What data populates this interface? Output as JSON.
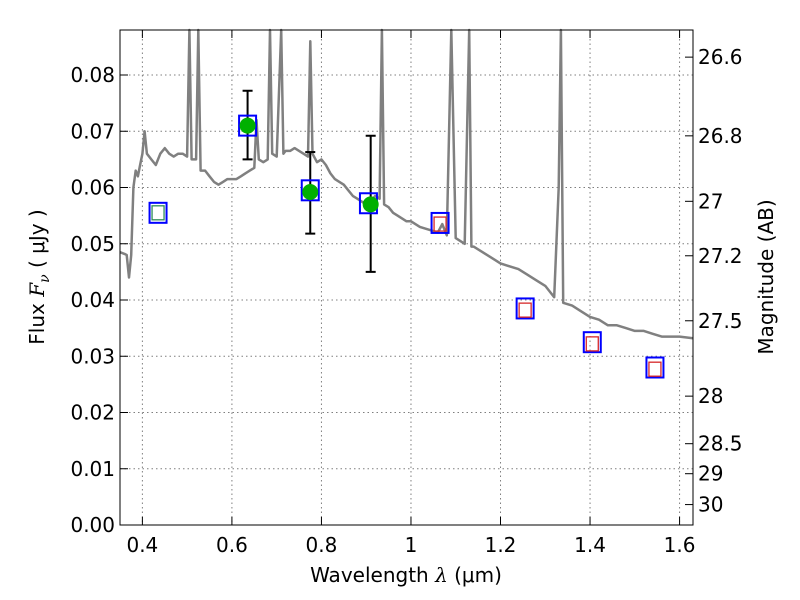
{
  "chart_data": {
    "type": "scatter",
    "xlabel": {
      "prefix": "Wavelength ",
      "symbol": "λ",
      "unit": " (μm)"
    },
    "ylabel": {
      "prefix": "Flux ",
      "symbol": "F",
      "subscript": "ν",
      "unit": " ( μJy )"
    },
    "y2label": "Magnitude (AB)",
    "xlim": [
      0.35,
      1.63
    ],
    "ylim": [
      0.0,
      0.088
    ],
    "grid": true,
    "x_ticks": [
      0.4,
      0.6,
      0.8,
      1.0,
      1.2,
      1.4,
      1.6
    ],
    "x_tick_labels": [
      "0.4",
      "0.6",
      "0.8",
      "1",
      "1.2",
      "1.4",
      "1.6"
    ],
    "y_ticks": [
      0.0,
      0.01,
      0.02,
      0.03,
      0.04,
      0.05,
      0.06,
      0.07,
      0.08
    ],
    "y_tick_labels": [
      "0.00",
      "0.01",
      "0.02",
      "0.03",
      "0.04",
      "0.05",
      "0.06",
      "0.07",
      "0.08"
    ],
    "y2_ticks": [
      {
        "mag": 26.6,
        "label": "26.6"
      },
      {
        "mag": 26.8,
        "label": "26.8"
      },
      {
        "mag": 27.0,
        "label": "27"
      },
      {
        "mag": 27.2,
        "label": "27.2"
      },
      {
        "mag": 27.5,
        "label": "27.5"
      },
      {
        "mag": 28.0,
        "label": "28"
      },
      {
        "mag": 28.5,
        "label": "28.5"
      },
      {
        "mag": 29.0,
        "label": "29"
      },
      {
        "mag": 30.0,
        "label": "30"
      }
    ],
    "sed_model": {
      "color": "#808080",
      "points": [
        [
          0.35,
          0.0485
        ],
        [
          0.36,
          0.0482
        ],
        [
          0.365,
          0.048
        ],
        [
          0.37,
          0.044
        ],
        [
          0.375,
          0.048
        ],
        [
          0.38,
          0.06
        ],
        [
          0.385,
          0.063
        ],
        [
          0.39,
          0.062
        ],
        [
          0.395,
          0.064
        ],
        [
          0.4,
          0.066
        ],
        [
          0.405,
          0.07
        ],
        [
          0.41,
          0.066
        ],
        [
          0.42,
          0.065
        ],
        [
          0.43,
          0.064
        ],
        [
          0.44,
          0.066
        ],
        [
          0.45,
          0.067
        ],
        [
          0.46,
          0.066
        ],
        [
          0.47,
          0.0655
        ],
        [
          0.48,
          0.066
        ],
        [
          0.49,
          0.066
        ],
        [
          0.5,
          0.0655
        ],
        [
          0.505,
          0.09
        ],
        [
          0.51,
          0.065
        ],
        [
          0.52,
          0.065
        ],
        [
          0.525,
          0.088
        ],
        [
          0.53,
          0.063
        ],
        [
          0.54,
          0.063
        ],
        [
          0.55,
          0.062
        ],
        [
          0.56,
          0.061
        ],
        [
          0.57,
          0.0605
        ],
        [
          0.58,
          0.061
        ],
        [
          0.59,
          0.0615
        ],
        [
          0.6,
          0.0615
        ],
        [
          0.61,
          0.0615
        ],
        [
          0.62,
          0.062
        ],
        [
          0.63,
          0.0625
        ],
        [
          0.64,
          0.063
        ],
        [
          0.65,
          0.0635
        ],
        [
          0.655,
          0.072
        ],
        [
          0.66,
          0.065
        ],
        [
          0.67,
          0.0645
        ],
        [
          0.68,
          0.065
        ],
        [
          0.685,
          0.09
        ],
        [
          0.69,
          0.066
        ],
        [
          0.7,
          0.0655
        ],
        [
          0.71,
          0.09
        ],
        [
          0.715,
          0.066
        ],
        [
          0.72,
          0.0665
        ],
        [
          0.73,
          0.0665
        ],
        [
          0.74,
          0.067
        ],
        [
          0.75,
          0.0665
        ],
        [
          0.76,
          0.066
        ],
        [
          0.77,
          0.0655
        ],
        [
          0.775,
          0.086
        ],
        [
          0.78,
          0.066
        ],
        [
          0.79,
          0.0645
        ],
        [
          0.8,
          0.065
        ],
        [
          0.81,
          0.064
        ],
        [
          0.82,
          0.0625
        ],
        [
          0.83,
          0.0615
        ],
        [
          0.84,
          0.061
        ],
        [
          0.85,
          0.0605
        ],
        [
          0.86,
          0.0595
        ],
        [
          0.87,
          0.0585
        ],
        [
          0.88,
          0.058
        ],
        [
          0.89,
          0.0575
        ],
        [
          0.9,
          0.057
        ],
        [
          0.91,
          0.0575
        ],
        [
          0.92,
          0.0585
        ],
        [
          0.93,
          0.058
        ],
        [
          0.935,
          0.09
        ],
        [
          0.94,
          0.057
        ],
        [
          0.95,
          0.0565
        ],
        [
          0.96,
          0.0555
        ],
        [
          0.97,
          0.055
        ],
        [
          0.98,
          0.0545
        ],
        [
          0.99,
          0.054
        ],
        [
          1.0,
          0.054
        ],
        [
          1.02,
          0.053
        ],
        [
          1.04,
          0.0525
        ],
        [
          1.06,
          0.052
        ],
        [
          1.07,
          0.0535
        ],
        [
          1.08,
          0.0515
        ],
        [
          1.09,
          0.09
        ],
        [
          1.1,
          0.051
        ],
        [
          1.12,
          0.05
        ],
        [
          1.13,
          0.09
        ],
        [
          1.135,
          0.0495
        ],
        [
          1.14,
          0.0495
        ],
        [
          1.16,
          0.0485
        ],
        [
          1.18,
          0.0475
        ],
        [
          1.2,
          0.0465
        ],
        [
          1.22,
          0.046
        ],
        [
          1.24,
          0.0455
        ],
        [
          1.26,
          0.0445
        ],
        [
          1.28,
          0.0435
        ],
        [
          1.3,
          0.0425
        ],
        [
          1.31,
          0.0415
        ],
        [
          1.32,
          0.0405
        ],
        [
          1.33,
          0.06
        ],
        [
          1.335,
          0.09
        ],
        [
          1.34,
          0.0395
        ],
        [
          1.36,
          0.039
        ],
        [
          1.38,
          0.038
        ],
        [
          1.4,
          0.037
        ],
        [
          1.42,
          0.0365
        ],
        [
          1.44,
          0.0355
        ],
        [
          1.46,
          0.0355
        ],
        [
          1.48,
          0.035
        ],
        [
          1.5,
          0.0345
        ],
        [
          1.52,
          0.0345
        ],
        [
          1.54,
          0.034
        ],
        [
          1.56,
          0.0335
        ],
        [
          1.58,
          0.0335
        ],
        [
          1.6,
          0.0335
        ],
        [
          1.63,
          0.0332
        ]
      ]
    },
    "model_photometry": [
      {
        "x": 0.435,
        "y": 0.0555
      },
      {
        "x": 0.635,
        "y": 0.071
      },
      {
        "x": 0.775,
        "y": 0.0595
      },
      {
        "x": 0.905,
        "y": 0.0572
      },
      {
        "x": 1.065,
        "y": 0.0537
      },
      {
        "x": 1.255,
        "y": 0.0385
      },
      {
        "x": 1.405,
        "y": 0.0325
      },
      {
        "x": 1.545,
        "y": 0.028
      }
    ],
    "inner_markers": [
      {
        "x": 0.435,
        "y": 0.0555,
        "color": "#2e8b57"
      },
      {
        "x": 1.065,
        "y": 0.0535,
        "color": "#d62728"
      },
      {
        "x": 1.255,
        "y": 0.0382,
        "color": "#d62728"
      },
      {
        "x": 1.405,
        "y": 0.0322,
        "color": "#d62728"
      },
      {
        "x": 1.545,
        "y": 0.0277,
        "color": "#d62728"
      }
    ],
    "observed": [
      {
        "x": 0.635,
        "y": 0.071,
        "err_low": 0.065,
        "err_high": 0.0772
      },
      {
        "x": 0.775,
        "y": 0.0592,
        "err_low": 0.0518,
        "err_high": 0.0663
      },
      {
        "x": 0.91,
        "y": 0.057,
        "err_low": 0.045,
        "err_high": 0.0692
      }
    ],
    "colors": {
      "model_box": "#0000ff",
      "observed": "#00b000",
      "errorbar": "#000000",
      "grid": "#7f7f7f"
    }
  }
}
